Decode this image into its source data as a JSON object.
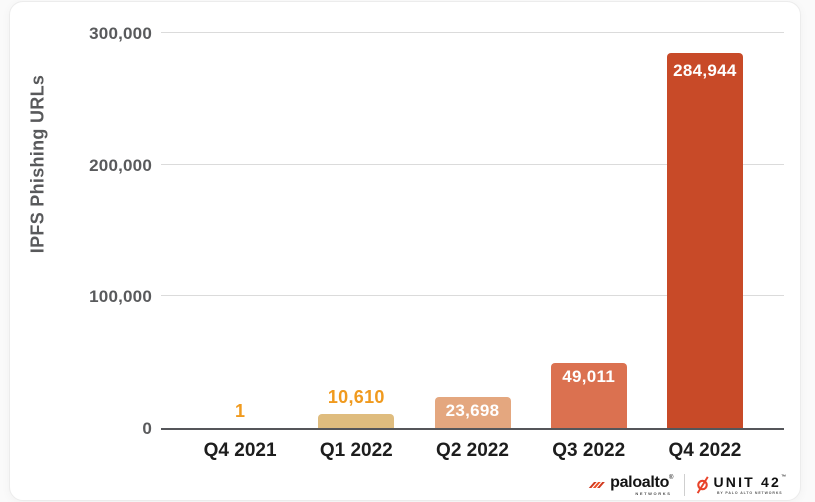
{
  "chart_data": {
    "type": "bar",
    "title": "",
    "ylabel": "IPFS Phishing URLs",
    "xlabel": "",
    "categories": [
      "Q4 2021",
      "Q1 2022",
      "Q2 2022",
      "Q3 2022",
      "Q4 2022"
    ],
    "values": [
      1,
      10610,
      23698,
      49011,
      284944
    ],
    "value_labels": [
      "1",
      "10,610",
      "23,698",
      "49,011",
      "284,944"
    ],
    "bar_colors": [
      "#F09A1E",
      "#DFBC7E",
      "#E4A77F",
      "#DB7150",
      "#C84A28"
    ],
    "value_label_placement": [
      "above",
      "above",
      "inside",
      "inside",
      "inside"
    ],
    "above_label_color": "#F09A1E",
    "inside_label_color": "#FFFFFF",
    "ylim": [
      0,
      300000
    ],
    "yticks": [
      0,
      100000,
      200000,
      300000
    ],
    "ytick_labels": [
      "0",
      "100,000",
      "200,000",
      "300,000"
    ],
    "grid": "horizontal",
    "legend": "none"
  },
  "footer": {
    "paloalto_wordmark": "paloalto",
    "paloalto_reg": "®",
    "paloalto_sub": "NETWORKS",
    "unit42_wordmark": "UNIT 42",
    "unit42_tm": "™",
    "unit42_sub": "BY PALO ALTO NETWORKS"
  },
  "colors": {
    "axis_tick_text": "#595A5C",
    "axis_title_text": "#58595B",
    "x_label_text": "#1D1D1D",
    "gridline": "#DBDBDB",
    "baseline": "#55565A",
    "card_border": "#ECECEC",
    "logo_red": "#E8432A",
    "logo_red_dark": "#C93A1F"
  }
}
